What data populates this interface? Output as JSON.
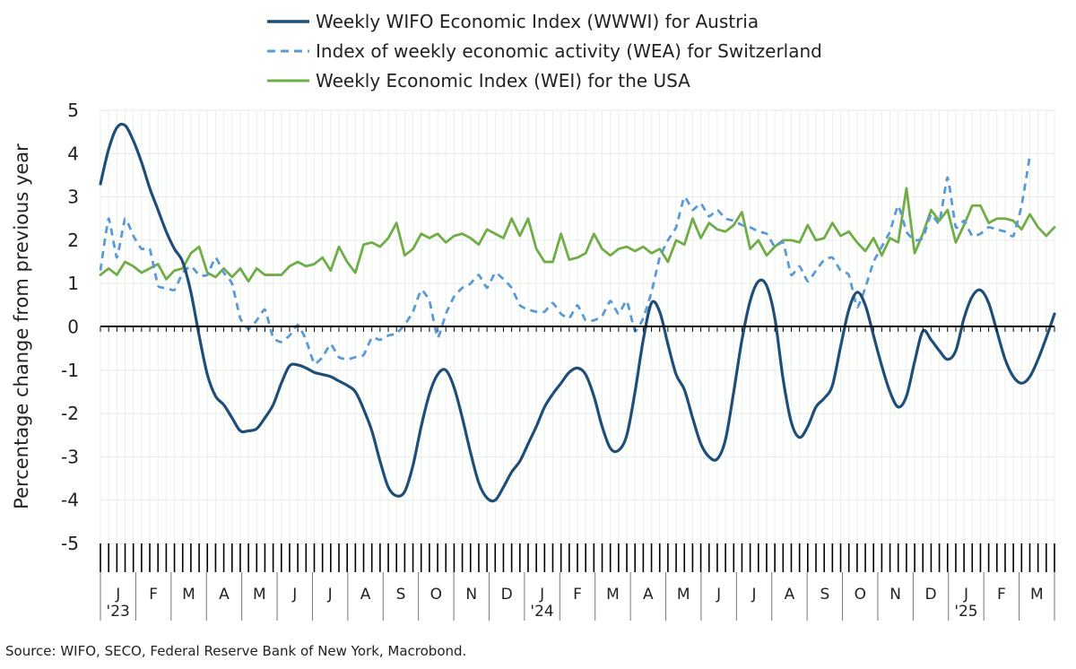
{
  "source": "Source: WIFO, SECO, Federal Reserve Bank of New York, Macrobond.",
  "chart_data": {
    "type": "line",
    "title": "",
    "ylabel": "Percentage change from previous year",
    "xlabel": "",
    "ylim": [
      -5,
      5
    ],
    "yticks": [
      5,
      4,
      3,
      2,
      1,
      0,
      -1,
      -2,
      -3,
      -4,
      -5
    ],
    "grid": true,
    "legend_position": "top-center",
    "x_start": "2023-01-06",
    "x_interval": "weekly",
    "x_month_labels": [
      "J",
      "F",
      "M",
      "A",
      "M",
      "J",
      "J",
      "A",
      "S",
      "O",
      "N",
      "D",
      "J",
      "F",
      "M",
      "A",
      "M",
      "J",
      "J",
      "A",
      "S",
      "O",
      "N",
      "D",
      "J",
      "F",
      "M"
    ],
    "x_year_labels": [
      {
        "month_index": 0,
        "label": "'23"
      },
      {
        "month_index": 12,
        "label": "'24"
      },
      {
        "month_index": 24,
        "label": "'25"
      }
    ],
    "series": [
      {
        "name": "Weekly WIFO Economic Index (WWWI) for Austria",
        "color": "#1f4e79",
        "style": "solid",
        "values": [
          3.3,
          4.1,
          4.6,
          4.65,
          4.3,
          3.8,
          3.2,
          2.7,
          2.2,
          1.8,
          1.5,
          0.8,
          -0.2,
          -1.1,
          -1.6,
          -1.8,
          -2.1,
          -2.4,
          -2.4,
          -2.35,
          -2.1,
          -1.8,
          -1.3,
          -0.9,
          -0.88,
          -0.95,
          -1.05,
          -1.1,
          -1.15,
          -1.25,
          -1.35,
          -1.5,
          -1.9,
          -2.4,
          -3.1,
          -3.7,
          -3.9,
          -3.8,
          -3.2,
          -2.3,
          -1.55,
          -1.1,
          -1.0,
          -1.4,
          -2.1,
          -2.9,
          -3.6,
          -3.95,
          -4.0,
          -3.7,
          -3.35,
          -3.1,
          -2.7,
          -2.3,
          -1.85,
          -1.55,
          -1.3,
          -1.05,
          -0.95,
          -1.1,
          -1.6,
          -2.3,
          -2.8,
          -2.85,
          -2.5,
          -1.5,
          -0.3,
          0.55,
          0.35,
          -0.4,
          -1.1,
          -1.45,
          -2.1,
          -2.7,
          -3.0,
          -3.05,
          -2.6,
          -1.5,
          -0.3,
          0.6,
          1.05,
          0.95,
          0.2,
          -1.2,
          -2.2,
          -2.55,
          -2.3,
          -1.85,
          -1.65,
          -1.35,
          -0.45,
          0.4,
          0.8,
          0.5,
          -0.2,
          -0.9,
          -1.5,
          -1.85,
          -1.6,
          -0.8,
          -0.1,
          -0.3,
          -0.55,
          -0.75,
          -0.55,
          0.2,
          0.7,
          0.85,
          0.55,
          -0.1,
          -0.75,
          -1.15,
          -1.3,
          -1.15,
          -0.75,
          -0.25,
          0.3
        ],
        "tension": 0.5
      },
      {
        "name": "Index of weekly economic activity (WEA) for Switzerland",
        "color": "#5b9bd5",
        "style": "dashed",
        "values": [
          1.3,
          2.5,
          1.6,
          2.5,
          2.1,
          1.8,
          1.8,
          0.95,
          0.9,
          0.85,
          1.25,
          1.4,
          1.2,
          1.2,
          1.6,
          1.25,
          1.0,
          0.2,
          -0.05,
          0.15,
          0.4,
          -0.25,
          -0.35,
          -0.2,
          0.05,
          -0.3,
          -0.85,
          -0.7,
          -0.4,
          -0.7,
          -0.75,
          -0.7,
          -0.65,
          -0.25,
          -0.3,
          -0.2,
          -0.15,
          0.05,
          0.35,
          0.85,
          0.6,
          -0.25,
          0.3,
          0.7,
          0.9,
          1.0,
          1.2,
          0.9,
          1.25,
          1.1,
          0.9,
          0.5,
          0.4,
          0.35,
          0.35,
          0.55,
          0.3,
          0.2,
          0.5,
          0.15,
          0.15,
          0.25,
          0.6,
          0.3,
          0.6,
          -0.1,
          0.2,
          0.8,
          1.6,
          2.0,
          2.3,
          3.0,
          2.7,
          2.85,
          2.55,
          2.7,
          2.5,
          2.45,
          2.35,
          2.3,
          2.2,
          2.15,
          1.85,
          1.95,
          1.2,
          1.4,
          1.05,
          1.3,
          1.55,
          1.6,
          1.3,
          1.2,
          0.45,
          0.9,
          1.5,
          1.85,
          2.2,
          2.8,
          2.2,
          2.0,
          2.05,
          2.6,
          2.4,
          3.45,
          2.3,
          2.45,
          2.1,
          2.15,
          2.3,
          2.25,
          2.2,
          2.1,
          2.8,
          3.95
        ],
        "tension": 0.2
      },
      {
        "name": "Weekly Economic Index (WEI) for the USA",
        "color": "#70ad47",
        "style": "solid",
        "values": [
          1.2,
          1.35,
          1.2,
          1.5,
          1.4,
          1.25,
          1.35,
          1.45,
          1.1,
          1.3,
          1.35,
          1.7,
          1.85,
          1.25,
          1.15,
          1.35,
          1.15,
          1.35,
          1.05,
          1.35,
          1.2,
          1.2,
          1.2,
          1.4,
          1.5,
          1.4,
          1.45,
          1.6,
          1.3,
          1.85,
          1.5,
          1.25,
          1.9,
          1.95,
          1.85,
          2.05,
          2.4,
          1.65,
          1.8,
          2.15,
          2.05,
          2.15,
          1.95,
          2.1,
          2.15,
          2.05,
          1.9,
          2.25,
          2.15,
          2.05,
          2.5,
          2.1,
          2.5,
          1.8,
          1.5,
          1.5,
          2.15,
          1.55,
          1.6,
          1.7,
          2.15,
          1.8,
          1.65,
          1.8,
          1.85,
          1.75,
          1.85,
          1.7,
          1.8,
          1.5,
          2.0,
          1.9,
          2.5,
          2.05,
          2.4,
          2.25,
          2.2,
          2.35,
          2.65,
          1.8,
          2.0,
          1.65,
          1.85,
          2.0,
          2.0,
          1.95,
          2.35,
          2.0,
          2.05,
          2.4,
          2.1,
          2.2,
          1.95,
          1.75,
          2.05,
          1.65,
          2.05,
          1.95,
          3.2,
          1.7,
          2.15,
          2.7,
          2.45,
          2.7,
          1.95,
          2.35,
          2.8,
          2.8,
          2.4,
          2.5,
          2.5,
          2.45,
          2.25,
          2.6,
          2.3,
          2.1,
          2.3
        ],
        "tension": 0
      }
    ]
  }
}
